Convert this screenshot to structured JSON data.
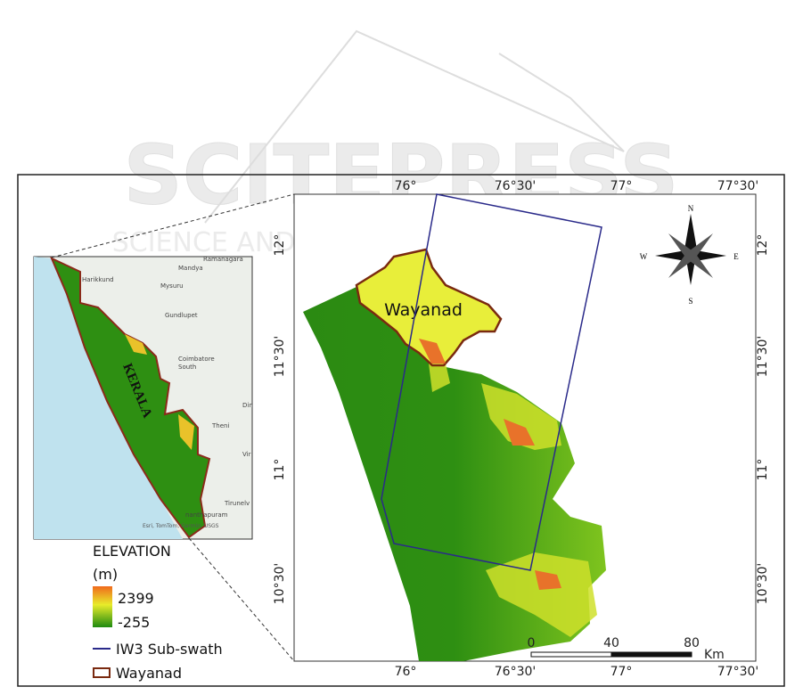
{
  "watermark": {
    "title": "SCITEPRESS",
    "subtitle": "SCIENCE AND TECHNOLOGY PUBLICATIONS"
  },
  "main_map": {
    "top_longitudes": [
      "76°",
      "76°30'",
      "77°",
      "77°30'"
    ],
    "bottom_longitudes": [
      "76°",
      "76°30'",
      "77°",
      "77°30'"
    ],
    "left_latitudes": [
      "12°",
      "11°30'",
      "11°",
      "10°30'"
    ],
    "right_latitudes": [
      "12°",
      "11°30'",
      "11°",
      "10°30'"
    ],
    "region_label": "Wayanad",
    "compass": {
      "north": "N",
      "east": "E",
      "south": "S",
      "west": "W"
    },
    "scale_bar": {
      "labels": [
        "0",
        "40",
        "80"
      ],
      "unit": "Km"
    }
  },
  "inset_map": {
    "state_label": "KERALA",
    "places": [
      "Ramanagara",
      "Mandya",
      "Mysuru",
      "Harikkund",
      "Gundlupet",
      "Coimbatore",
      "South",
      "Din",
      "Theni",
      "Vir",
      "Tirunelv",
      "nanthapuram"
    ],
    "attribution": "Esri, TomTom, Garmin, USGS"
  },
  "legend": {
    "title": "ELEVATION",
    "unit": "(m)",
    "max": "2399",
    "min": "-255",
    "swath": "IW3 Sub-swath",
    "boundary": "Wayanad"
  }
}
